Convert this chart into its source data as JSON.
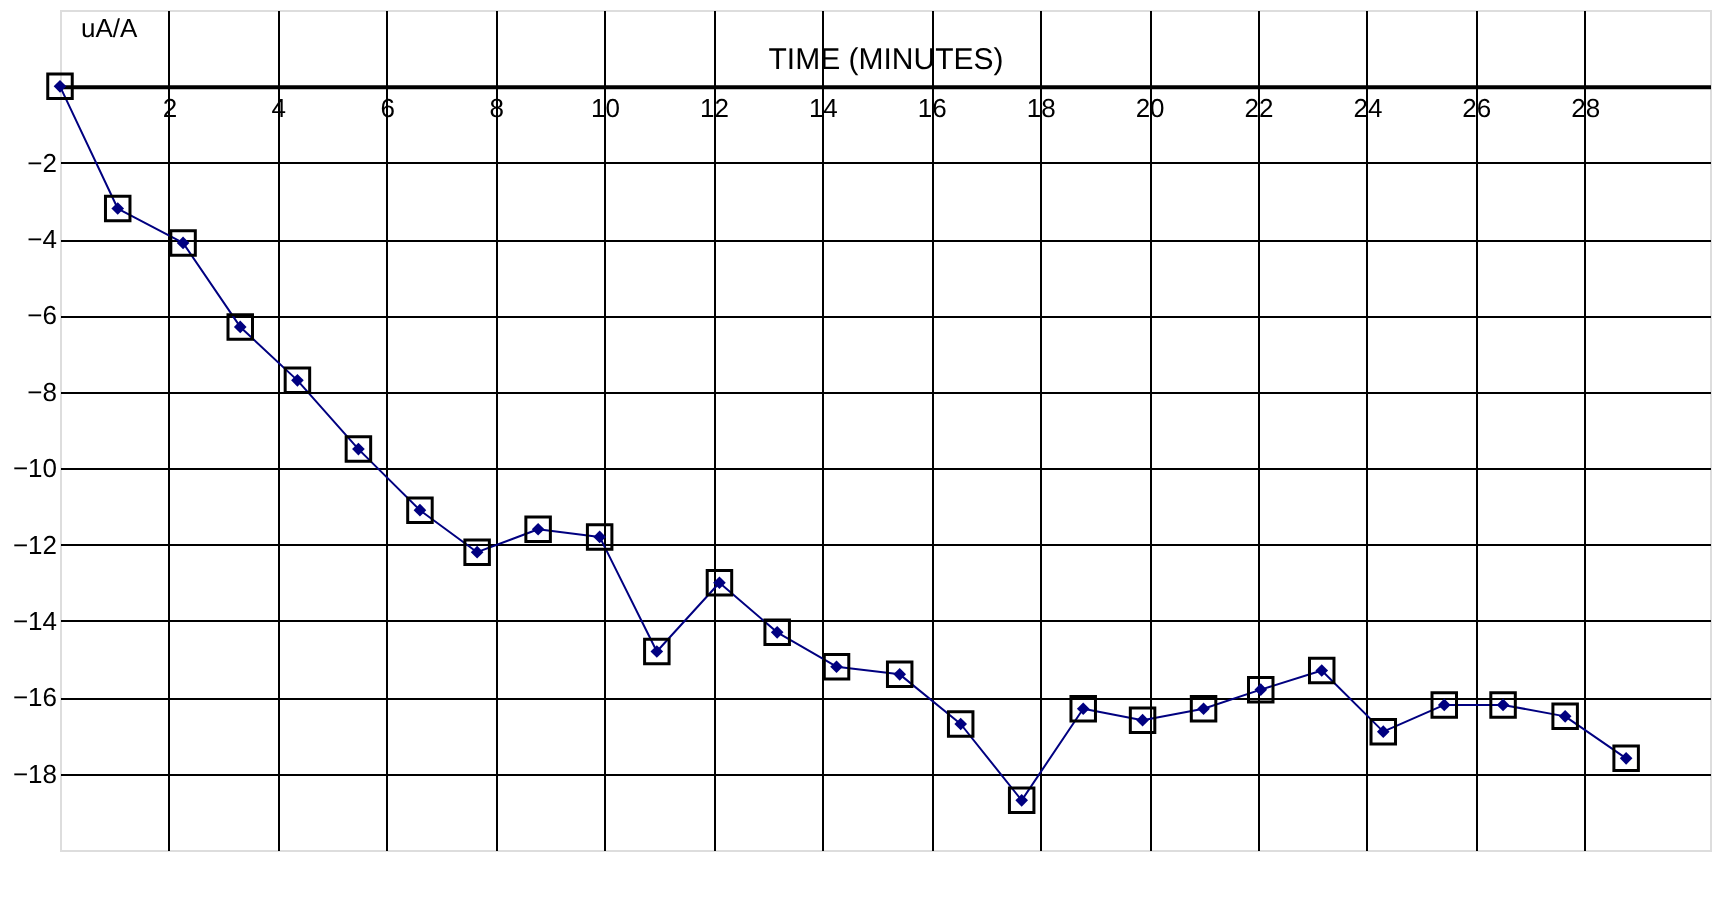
{
  "chart_data": {
    "type": "line",
    "xlabel": "TIME (MINUTES)",
    "ylabel": "uA/A",
    "x": [
      0,
      1.06,
      2.26,
      3.31,
      4.36,
      5.48,
      6.61,
      7.66,
      8.78,
      9.91,
      10.96,
      12.11,
      13.17,
      14.26,
      15.42,
      16.54,
      17.66,
      18.79,
      19.88,
      21.0,
      22.05,
      23.17,
      24.3,
      25.42,
      26.5,
      27.64,
      28.76
    ],
    "series": [
      {
        "color": "#000080",
        "values": [
          0,
          -3.2,
          -4.1,
          -6.3,
          -7.7,
          -9.5,
          -11.1,
          -12.2,
          -11.6,
          -11.8,
          -14.8,
          -13.0,
          -14.3,
          -15.2,
          -15.4,
          -16.7,
          -18.7,
          -16.3,
          -16.6,
          -16.3,
          -15.8,
          -15.3,
          -16.9,
          -16.2,
          -16.2,
          -16.5,
          -17.6
        ]
      }
    ],
    "xlim": [
      0,
      30.3
    ],
    "ylim": [
      -20,
      2
    ],
    "xticks": [
      2,
      4,
      6,
      8,
      10,
      12,
      14,
      16,
      18,
      20,
      22,
      24,
      26,
      28
    ],
    "yticks": [
      -2,
      -4,
      -6,
      -8,
      -10,
      -12,
      -14,
      -16,
      -18
    ],
    "grid": true,
    "marker": "diamond",
    "line_style": "solid"
  }
}
